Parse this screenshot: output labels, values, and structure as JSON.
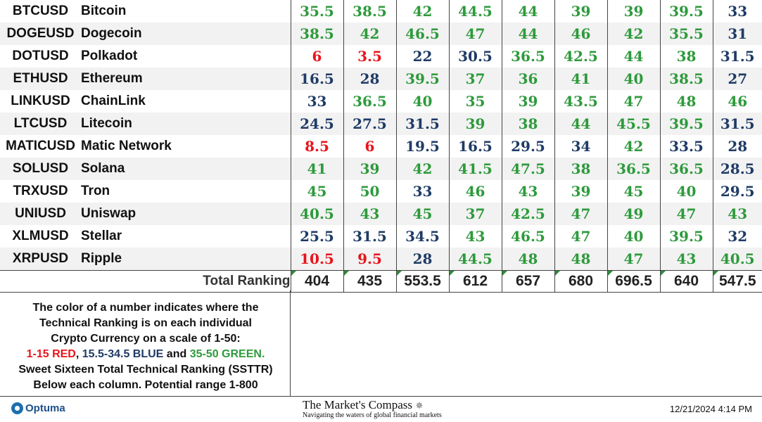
{
  "rows": [
    {
      "symbol": "BTCUSD",
      "name": "Bitcoin",
      "values": [
        "35.5",
        "38.5",
        "42",
        "44.5",
        "44",
        "39",
        "39",
        "39.5",
        "33"
      ]
    },
    {
      "symbol": "DOGEUSD",
      "name": "Dogecoin",
      "values": [
        "38.5",
        "42",
        "46.5",
        "47",
        "44",
        "46",
        "42",
        "35.5",
        "31"
      ]
    },
    {
      "symbol": "DOTUSD",
      "name": "Polkadot",
      "values": [
        "6",
        "3.5",
        "22",
        "30.5",
        "36.5",
        "42.5",
        "44",
        "38",
        "31.5"
      ]
    },
    {
      "symbol": "ETHUSD",
      "name": "Ethereum",
      "values": [
        "16.5",
        "28",
        "39.5",
        "37",
        "36",
        "41",
        "40",
        "38.5",
        "27"
      ]
    },
    {
      "symbol": "LINKUSD",
      "name": "ChainLink",
      "values": [
        "33",
        "36.5",
        "40",
        "35",
        "39",
        "43.5",
        "47",
        "48",
        "46"
      ]
    },
    {
      "symbol": "LTCUSD",
      "name": "Litecoin",
      "values": [
        "24.5",
        "27.5",
        "31.5",
        "39",
        "38",
        "44",
        "45.5",
        "39.5",
        "31.5"
      ]
    },
    {
      "symbol": "MATICUSD",
      "name": "Matic Network",
      "values": [
        "8.5",
        "6",
        "19.5",
        "16.5",
        "29.5",
        "34",
        "42",
        "33.5",
        "28"
      ]
    },
    {
      "symbol": "SOLUSD",
      "name": "Solana",
      "values": [
        "41",
        "39",
        "42",
        "41.5",
        "47.5",
        "38",
        "36.5",
        "36.5",
        "28.5"
      ]
    },
    {
      "symbol": "TRXUSD",
      "name": "Tron",
      "values": [
        "45",
        "50",
        "33",
        "46",
        "43",
        "39",
        "45",
        "40",
        "29.5"
      ]
    },
    {
      "symbol": "UNIUSD",
      "name": "Uniswap",
      "values": [
        "40.5",
        "43",
        "45",
        "37",
        "42.5",
        "47",
        "49",
        "47",
        "43"
      ]
    },
    {
      "symbol": "XLMUSD",
      "name": "Stellar",
      "values": [
        "25.5",
        "31.5",
        "34.5",
        "43",
        "46.5",
        "47",
        "40",
        "39.5",
        "32"
      ]
    },
    {
      "symbol": "XRPUSD",
      "name": "Ripple",
      "values": [
        "10.5",
        "9.5",
        "28",
        "44.5",
        "48",
        "48",
        "47",
        "43",
        "40.5"
      ]
    }
  ],
  "total": {
    "label": "Total Ranking",
    "values": [
      "404",
      "435",
      "553.5",
      "612",
      "657",
      "680",
      "696.5",
      "640",
      "547.5"
    ]
  },
  "legend": {
    "line1": "The color of a number indicates where the",
    "line2": "Technical Ranking is on each individual",
    "line3": "Crypto Currency on a scale of 1-50:",
    "red": "1-15 RED",
    "sep1": ", ",
    "blue": "15.5-34.5 BLUE",
    "sep2": " and ",
    "green": "35-50 GREEN.",
    "line5": "Sweet Sixteen Total Technical Ranking (SSTTR)",
    "line6": "Below each column.   Potential range 1-800"
  },
  "footer": {
    "optuma": "Optuma",
    "title": "The Market's Compass",
    "subtitle": "Navigating the waters of global financial markets",
    "timestamp": "12/21/2024 4:14 PM"
  },
  "colors": {
    "red": "#e8141b",
    "blue": "#1f3b66",
    "green": "#2e9a3c"
  }
}
